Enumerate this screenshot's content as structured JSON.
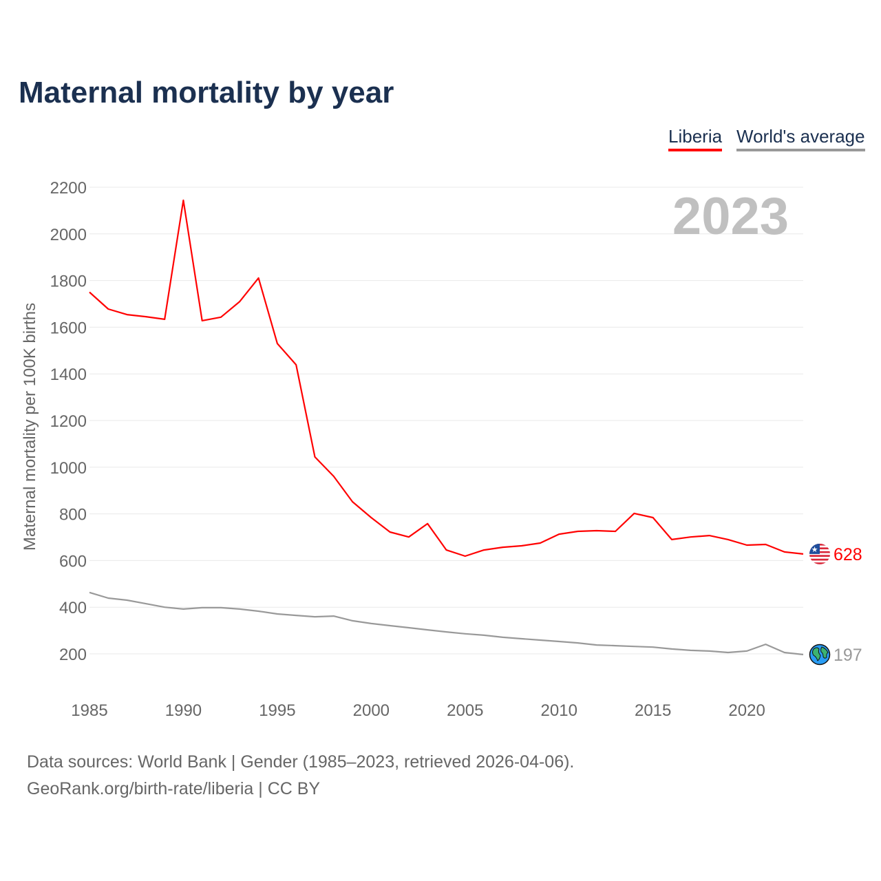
{
  "chart_data": {
    "type": "line",
    "title": "Maternal mortality by year",
    "ylabel": "Maternal mortality per 100K births",
    "xlabel": "",
    "ylim": [
      200,
      2200
    ],
    "xlim": [
      1985,
      2023
    ],
    "yticks": [
      200,
      400,
      600,
      800,
      1000,
      1200,
      1400,
      1600,
      1800,
      2000,
      2200
    ],
    "xticks": [
      1985,
      1990,
      1995,
      2000,
      2005,
      2010,
      2015,
      2020
    ],
    "grid": true,
    "legend_position": "top-right",
    "year_label": "2023",
    "x": [
      1985,
      1986,
      1987,
      1988,
      1989,
      1990,
      1991,
      1992,
      1993,
      1994,
      1995,
      1996,
      1997,
      1998,
      1999,
      2000,
      2001,
      2002,
      2003,
      2004,
      2005,
      2006,
      2007,
      2008,
      2009,
      2010,
      2011,
      2012,
      2013,
      2014,
      2015,
      2016,
      2017,
      2018,
      2019,
      2020,
      2021,
      2022,
      2023
    ],
    "series": [
      {
        "name": "Liberia",
        "color": "#ff0000",
        "end_label": "628",
        "icon": "liberia-flag-icon",
        "values": [
          1750,
          1678,
          1654,
          1645,
          1634,
          2144,
          1628,
          1643,
          1710,
          1811,
          1530,
          1439,
          1044,
          961,
          852,
          784,
          722,
          701,
          758,
          645,
          619,
          645,
          657,
          663,
          675,
          713,
          725,
          728,
          725,
          802,
          784,
          690,
          701,
          707,
          690,
          666,
          669,
          637,
          628
        ]
      },
      {
        "name": "World's average",
        "color": "#999999",
        "end_label": "197",
        "icon": "globe-icon",
        "values": [
          463,
          439,
          430,
          415,
          400,
          392,
          398,
          398,
          392,
          383,
          371,
          365,
          359,
          362,
          342,
          330,
          321,
          312,
          303,
          294,
          286,
          280,
          271,
          265,
          259,
          253,
          247,
          238,
          235,
          232,
          229,
          221,
          215,
          212,
          206,
          212,
          241,
          206,
          197
        ]
      }
    ]
  },
  "footer": {
    "line1": "Data sources: World Bank | Gender (1985–2023, retrieved 2026-04-06).",
    "line2": "GeoRank.org/birth-rate/liberia | CC BY"
  }
}
